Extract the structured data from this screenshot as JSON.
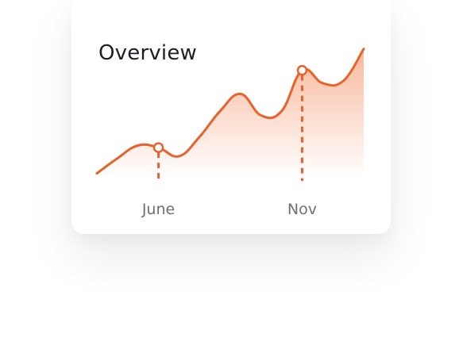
{
  "chart_data": {
    "type": "area",
    "title": "Overview",
    "x": [
      0,
      1,
      2,
      3,
      4,
      5,
      6,
      7,
      8,
      9,
      10,
      11,
      12,
      13
    ],
    "values": [
      4,
      18,
      30,
      28,
      20,
      38,
      62,
      78,
      58,
      62,
      100,
      88,
      90,
      120
    ],
    "ylim": [
      0,
      130
    ],
    "tick_labels": [
      {
        "label": "June",
        "x": 3
      },
      {
        "label": "Nov",
        "x": 10
      }
    ],
    "markers": [
      {
        "x": 3,
        "label": "June"
      },
      {
        "x": 10,
        "label": "Nov"
      }
    ],
    "grid": false,
    "colors": {
      "line": "#e8622c",
      "area": "#f5a07a",
      "marker_stroke": "#e8622c",
      "marker_fill": "#ffffff",
      "tick_text": "#6f6f76",
      "title_text": "#1e1e24"
    }
  }
}
